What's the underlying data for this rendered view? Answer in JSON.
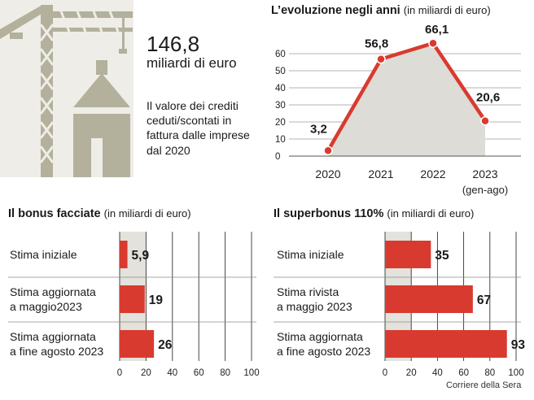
{
  "summary": {
    "value": "146,8",
    "unit": "miliardi di euro",
    "description": "Il valore dei crediti ceduti/scontati in fattura dalle imprese dal 2020"
  },
  "credit": "Corriere della Sera",
  "colors": {
    "red": "#d93a2f",
    "gray_band": "#e3e2dc",
    "area": "#dddcd6",
    "illustration": "#b3b09c"
  },
  "chart_data": [
    {
      "type": "area",
      "title": "L’evoluzione negli anni",
      "unit": "(in miliardi di euro)",
      "categories": [
        "2020",
        "2021",
        "2022",
        "2023"
      ],
      "category_notes": [
        "",
        "",
        "",
        "(gen-ago)"
      ],
      "values": [
        3.2,
        56.8,
        66.1,
        20.6
      ],
      "value_labels": [
        "3,2",
        "56,8",
        "66,1",
        "20,6"
      ],
      "ylim": [
        0,
        60
      ],
      "yticks": [
        0,
        10,
        20,
        30,
        40,
        50,
        60
      ],
      "grid": true
    },
    {
      "type": "bar",
      "title": "Il bonus facciate",
      "unit": "(in miliardi di euro)",
      "categories": [
        "Stima iniziale",
        "Stima aggiornata a maggio2023",
        "Stima aggiornata a fine agosto 2023"
      ],
      "category_lines": [
        [
          "Stima iniziale"
        ],
        [
          "Stima aggiornata",
          "a maggio2023"
        ],
        [
          "Stima aggiornata",
          "a fine agosto 2023"
        ]
      ],
      "values": [
        5.9,
        19,
        26
      ],
      "value_labels": [
        "5,9",
        "19",
        "26"
      ],
      "xlim": [
        0,
        100
      ],
      "xticks": [
        0,
        20,
        40,
        60,
        80,
        100
      ],
      "grid": true
    },
    {
      "type": "bar",
      "title": "Il superbonus 110%",
      "unit": "(in miliardi di euro)",
      "categories": [
        "Stima iniziale",
        "Stima rivista a maggio 2023",
        "Stima aggiornata a fine agosto 2023"
      ],
      "category_lines": [
        [
          "Stima iniziale"
        ],
        [
          "Stima rivista",
          "a maggio 2023"
        ],
        [
          "Stima aggiornata",
          "a fine agosto 2023"
        ]
      ],
      "values": [
        35,
        67,
        93
      ],
      "value_labels": [
        "35",
        "67",
        "93"
      ],
      "xlim": [
        0,
        100
      ],
      "xticks": [
        0,
        20,
        40,
        60,
        80,
        100
      ],
      "grid": true
    }
  ]
}
